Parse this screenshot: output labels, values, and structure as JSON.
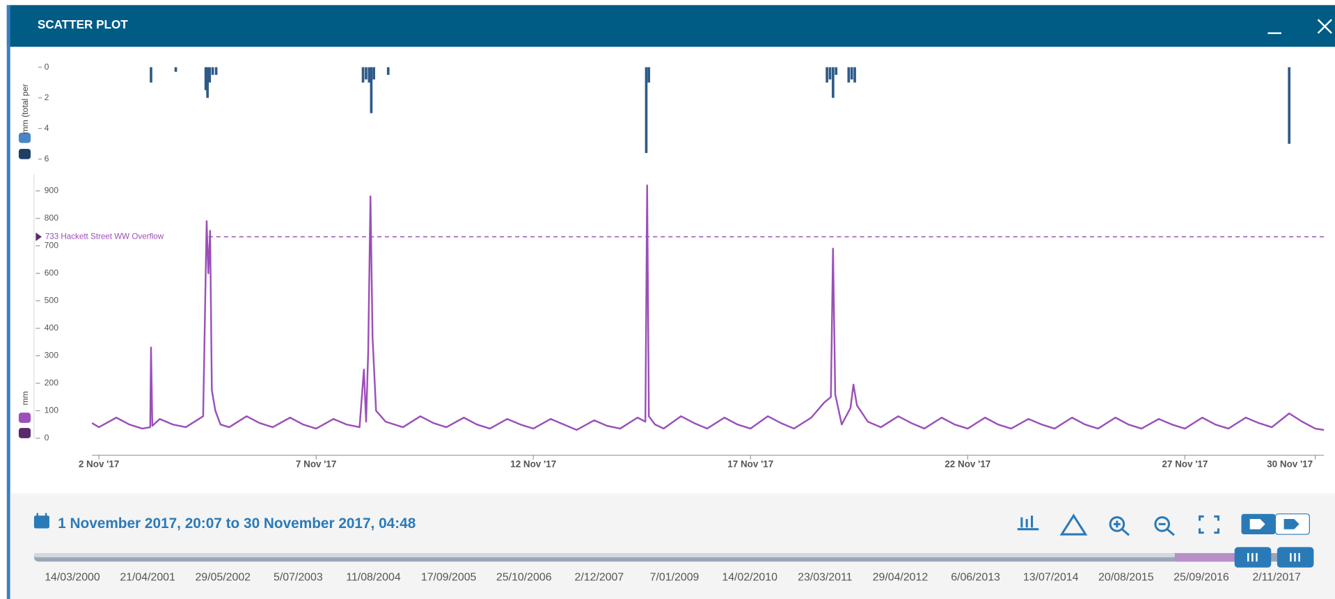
{
  "window": {
    "title": "SCATTER PLOT"
  },
  "chart_data": [
    {
      "type": "bar",
      "ylabel": "mm (total per",
      "color": "#2f5a87",
      "y_inverted": true,
      "xlim": [
        1.84,
        30.2
      ],
      "ylim": [
        0,
        6
      ],
      "yticks": [
        0,
        2,
        4,
        6
      ],
      "x": [
        3.2,
        3.77,
        4.46,
        4.5,
        4.55,
        4.62,
        4.7,
        8.08,
        8.15,
        8.22,
        8.27,
        8.33,
        8.66,
        14.6,
        14.66,
        18.76,
        18.83,
        18.9,
        18.97,
        19.26,
        19.33,
        19.4,
        29.4
      ],
      "values": [
        1.0,
        0.3,
        1.5,
        2.0,
        1.0,
        0.5,
        0.5,
        1.0,
        0.8,
        1.0,
        3.0,
        0.8,
        0.5,
        5.6,
        1.0,
        1.0,
        0.8,
        2.0,
        0.5,
        1.0,
        0.8,
        1.0,
        5.0
      ]
    },
    {
      "type": "line",
      "ylabel": "mm",
      "color": "#9b4fb8",
      "xlim": [
        1.84,
        30.2
      ],
      "ylim": [
        0,
        960
      ],
      "yticks": [
        0,
        100,
        200,
        300,
        400,
        500,
        600,
        700,
        800,
        900
      ],
      "xticks": [
        {
          "value": 2,
          "label": "2 Nov '17"
        },
        {
          "value": 7,
          "label": "7 Nov '17"
        },
        {
          "value": 12,
          "label": "12 Nov '17"
        },
        {
          "value": 17,
          "label": "17 Nov '17"
        },
        {
          "value": 22,
          "label": "22 Nov '17"
        },
        {
          "value": 27,
          "label": "27 Nov '17"
        },
        {
          "value": 30,
          "label": "30 Nov '17"
        }
      ],
      "threshold": {
        "value": 733,
        "label": "733 Hackett Street WW Overflow"
      },
      "x": [
        1.84,
        2.0,
        2.4,
        2.7,
        3.0,
        3.18,
        3.2,
        3.23,
        3.4,
        3.7,
        4.0,
        4.4,
        4.48,
        4.52,
        4.56,
        4.6,
        4.68,
        4.8,
        5.0,
        5.4,
        5.7,
        6.0,
        6.4,
        6.7,
        7.0,
        7.4,
        7.7,
        8.0,
        8.1,
        8.15,
        8.2,
        8.25,
        8.3,
        8.38,
        8.6,
        9.0,
        9.4,
        9.7,
        10.0,
        10.4,
        10.7,
        11.0,
        11.4,
        11.7,
        12.0,
        12.4,
        12.7,
        13.0,
        13.4,
        13.7,
        14.0,
        14.4,
        14.58,
        14.62,
        14.66,
        14.8,
        15.0,
        15.4,
        15.7,
        16.0,
        16.4,
        16.7,
        17.0,
        17.4,
        17.7,
        18.0,
        18.4,
        18.7,
        18.85,
        18.9,
        18.95,
        19.1,
        19.3,
        19.37,
        19.45,
        19.7,
        20.0,
        20.4,
        20.7,
        21.0,
        21.4,
        21.7,
        22.0,
        22.4,
        22.7,
        23.0,
        23.4,
        23.7,
        24.0,
        24.4,
        24.7,
        25.0,
        25.4,
        25.7,
        26.0,
        26.4,
        26.7,
        27.0,
        27.4,
        27.7,
        28.0,
        28.4,
        28.7,
        29.0,
        29.4,
        29.7,
        30.0,
        30.2
      ],
      "values": [
        55,
        40,
        75,
        50,
        35,
        40,
        330,
        45,
        70,
        50,
        40,
        80,
        790,
        600,
        755,
        175,
        100,
        50,
        40,
        80,
        55,
        40,
        75,
        50,
        35,
        70,
        50,
        40,
        250,
        60,
        320,
        880,
        365,
        100,
        60,
        40,
        80,
        55,
        40,
        75,
        50,
        35,
        70,
        50,
        35,
        70,
        50,
        30,
        65,
        45,
        35,
        75,
        60,
        920,
        80,
        50,
        35,
        80,
        55,
        35,
        75,
        50,
        35,
        80,
        55,
        35,
        75,
        130,
        150,
        690,
        160,
        50,
        110,
        195,
        120,
        60,
        40,
        80,
        55,
        35,
        75,
        50,
        35,
        75,
        50,
        35,
        70,
        50,
        35,
        75,
        50,
        35,
        75,
        50,
        35,
        70,
        50,
        35,
        75,
        50,
        35,
        75,
        55,
        40,
        90,
        60,
        35,
        30
      ]
    }
  ],
  "range": {
    "label": "1 November 2017, 20:07 to 30 November 2017, 04:48"
  },
  "timeline": {
    "labels": [
      "14/03/2000",
      "21/04/2001",
      "29/05/2002",
      "5/07/2003",
      "11/08/2004",
      "17/09/2005",
      "25/10/2006",
      "2/12/2007",
      "7/01/2009",
      "14/02/2010",
      "23/03/2011",
      "29/04/2012",
      "6/06/2013",
      "13/07/2014",
      "20/08/2015",
      "25/09/2016",
      "2/11/2017"
    ]
  }
}
